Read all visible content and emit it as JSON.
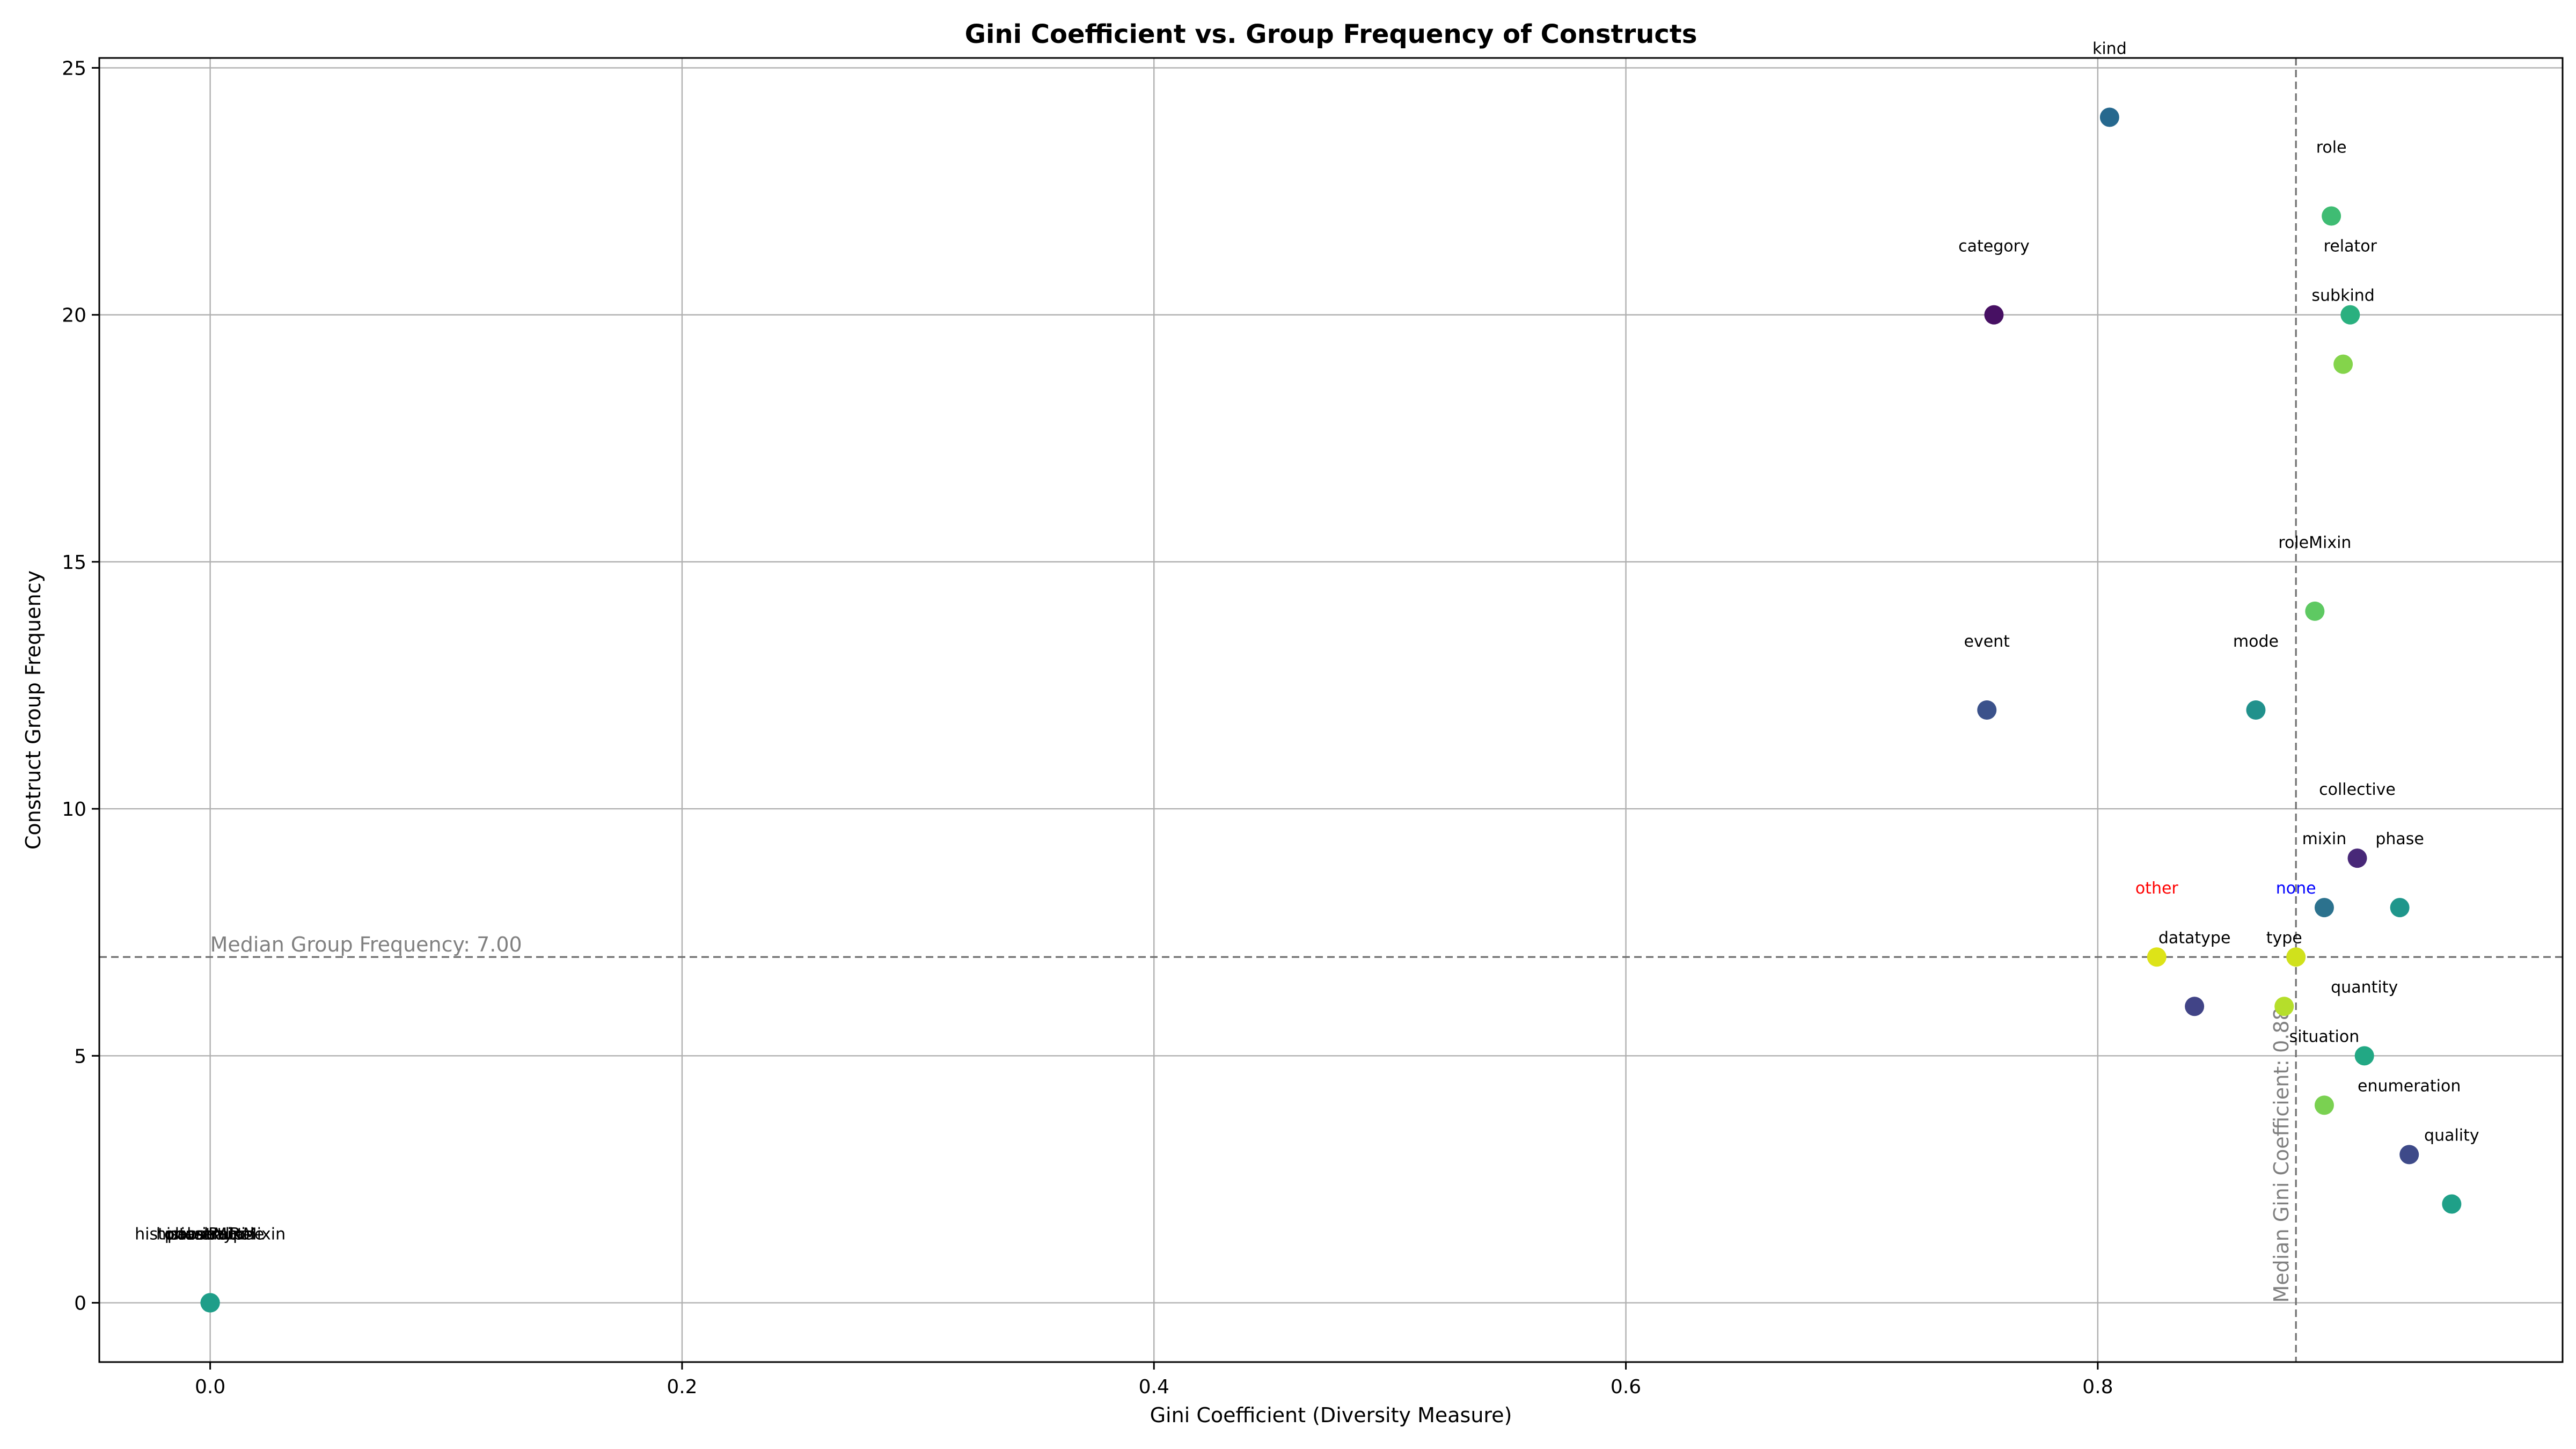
{
  "chart_data": {
    "type": "scatter",
    "title": "Gini Coefficient vs. Group Frequency of Constructs",
    "xlabel": "Gini Coefficient (Diversity Measure)",
    "ylabel": "Construct Group Frequency",
    "xlim": [
      -0.047,
      0.997
    ],
    "ylim": [
      -1.2,
      25.2
    ],
    "xticks": [
      0.0,
      0.2,
      0.4,
      0.6,
      0.8
    ],
    "yticks": [
      0,
      5,
      10,
      15,
      20,
      25
    ],
    "xtick_labels": [
      "0.0",
      "0.2",
      "0.4",
      "0.6",
      "0.8"
    ],
    "ytick_labels": [
      "0",
      "5",
      "10",
      "15",
      "20",
      "25"
    ],
    "grid": true,
    "median_gini": {
      "value": 0.884,
      "label": "Median Gini Coefficient: 0.88"
    },
    "median_frequency": {
      "value": 7,
      "label": "Median Group Frequency: 7.00"
    },
    "points": [
      {
        "label": "kind",
        "x": 0.805,
        "y": 24,
        "color": "#26688e",
        "label_color": "#000000"
      },
      {
        "label": "role",
        "x": 0.899,
        "y": 22,
        "color": "#3fbc73",
        "label_color": "#000000"
      },
      {
        "label": "category",
        "x": 0.756,
        "y": 20,
        "color": "#471063",
        "label_color": "#000000"
      },
      {
        "label": "relator",
        "x": 0.907,
        "y": 20,
        "color": "#2ab07f",
        "label_color": "#000000"
      },
      {
        "label": "subkind",
        "x": 0.904,
        "y": 19,
        "color": "#84d44b",
        "label_color": "#000000"
      },
      {
        "label": "roleMixin",
        "x": 0.892,
        "y": 14,
        "color": "#5ec962",
        "label_color": "#000000"
      },
      {
        "label": "event",
        "x": 0.753,
        "y": 12,
        "color": "#3b528b",
        "label_color": "#000000"
      },
      {
        "label": "mode",
        "x": 0.867,
        "y": 12,
        "color": "#21918c",
        "label_color": "#000000"
      },
      {
        "label": "collective",
        "x": 0.91,
        "y": 9,
        "color": "#482878",
        "label_color": "#000000"
      },
      {
        "label": "mixin",
        "x": 0.896,
        "y": 8,
        "color": "#2c728e",
        "label_color": "#000000"
      },
      {
        "label": "phase",
        "x": 0.928,
        "y": 8,
        "color": "#1f968b",
        "label_color": "#000000"
      },
      {
        "label": "other",
        "x": 0.825,
        "y": 7,
        "color": "#dde318",
        "label_color": "#ff0000"
      },
      {
        "label": "none",
        "x": 0.884,
        "y": 7,
        "color": "#d0e11c",
        "label_color": "#0000ff"
      },
      {
        "label": "datatype",
        "x": 0.841,
        "y": 6,
        "color": "#414487",
        "label_color": "#000000"
      },
      {
        "label": "type",
        "x": 0.879,
        "y": 6,
        "color": "#b5de2b",
        "label_color": "#000000"
      },
      {
        "label": "quantity",
        "x": 0.913,
        "y": 5,
        "color": "#22a884",
        "label_color": "#000000"
      },
      {
        "label": "situation",
        "x": 0.896,
        "y": 4,
        "color": "#7ad151",
        "label_color": "#000000"
      },
      {
        "label": "enumeration",
        "x": 0.932,
        "y": 3,
        "color": "#3e4a89",
        "label_color": "#000000"
      },
      {
        "label": "quality",
        "x": 0.95,
        "y": 2,
        "color": "#1fa088",
        "label_color": "#000000"
      },
      {
        "label": "historicalRoleMixin",
        "x": 0.0,
        "y": 0,
        "color": "#22a884",
        "label_color": "#000000"
      },
      {
        "label": "historicalRole",
        "x": 0.0,
        "y": 0,
        "color": "#1f9e89",
        "label_color": "#000000"
      },
      {
        "label": "abstract",
        "x": 0.0,
        "y": 0,
        "color": "#20928c",
        "label_color": "#000000"
      },
      {
        "label": "phaseMixin",
        "x": 0.0,
        "y": 0,
        "color": "#22a884",
        "label_color": "#000000"
      },
      {
        "label": "powertype",
        "x": 0.0,
        "y": 0,
        "color": "#1f9e89",
        "label_color": "#000000"
      }
    ]
  }
}
